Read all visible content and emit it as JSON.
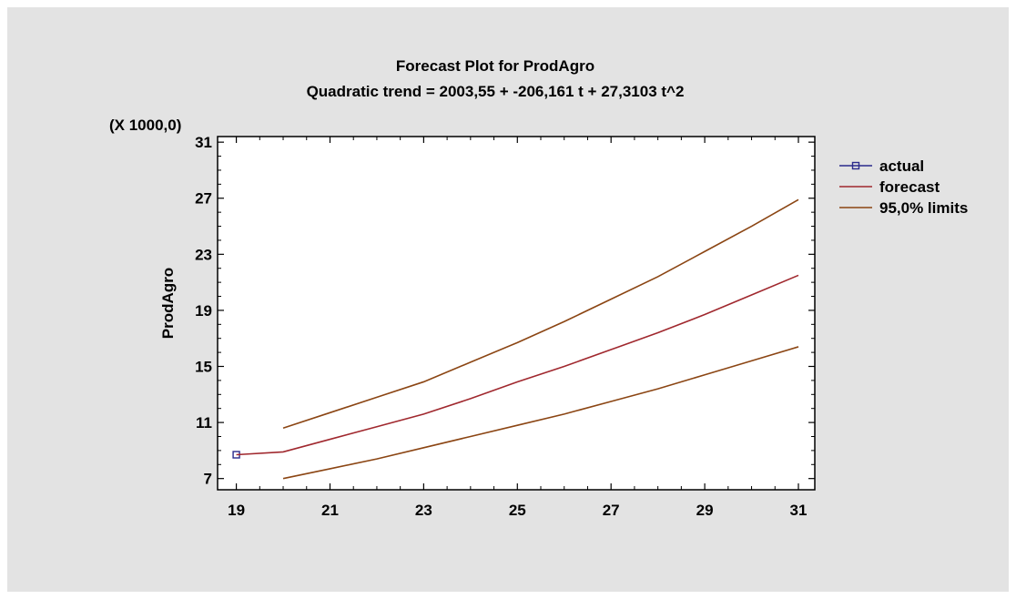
{
  "chart_data": {
    "type": "line",
    "title": "Forecast Plot for ProdAgro",
    "subtitle": "Quadratic trend = 2003,55 + -206,161 t  + 27,3103 t^2",
    "ylabel": "ProdAgro",
    "xlabel": "",
    "y_scale_note": "(X 1000,0)",
    "xlim": [
      18.6,
      31.35
    ],
    "ylim": [
      6.2,
      31.4
    ],
    "x_ticks": [
      19,
      21,
      23,
      25,
      27,
      29,
      31
    ],
    "x_tick_labels": [
      "19",
      "21",
      "23",
      "25",
      "27",
      "29",
      "31"
    ],
    "y_ticks": [
      7,
      11,
      15,
      19,
      23,
      27,
      31
    ],
    "y_tick_labels": [
      "7",
      "11",
      "15",
      "19",
      "23",
      "27",
      "31"
    ],
    "grid": false,
    "legend_position": "right",
    "series": [
      {
        "name": "actual",
        "color": "#2b2b8c",
        "marker": "square",
        "x": [
          19
        ],
        "y": [
          8.7
        ]
      },
      {
        "name": "forecast",
        "color": "#a0282e",
        "marker": "none",
        "x": [
          19,
          20,
          21,
          22,
          23,
          24,
          25,
          26,
          27,
          28,
          29,
          30,
          31
        ],
        "y": [
          8.7,
          8.9,
          9.8,
          10.7,
          11.6,
          12.7,
          13.9,
          15.0,
          16.2,
          17.4,
          18.7,
          20.1,
          21.5
        ]
      },
      {
        "name": "95,0% limits",
        "color": "#8b4513",
        "marker": "none",
        "x": [
          20,
          21,
          22,
          23,
          24,
          25,
          26,
          27,
          28,
          29,
          30,
          31
        ],
        "y": [
          10.6,
          11.7,
          12.8,
          13.9,
          15.3,
          16.7,
          18.2,
          19.8,
          21.4,
          23.2,
          25.0,
          26.9
        ]
      },
      {
        "name": "",
        "color": "#8b4513",
        "marker": "none",
        "x": [
          20,
          21,
          22,
          23,
          24,
          25,
          26,
          27,
          28,
          29,
          30,
          31
        ],
        "y": [
          7.0,
          7.7,
          8.4,
          9.2,
          10.0,
          10.8,
          11.6,
          12.5,
          13.4,
          14.4,
          15.4,
          16.4
        ]
      }
    ],
    "legend": [
      {
        "label": "actual",
        "color": "#2b2b8c",
        "marker": "square"
      },
      {
        "label": "forecast",
        "color": "#a0282e",
        "marker": "none"
      },
      {
        "label": "95,0% limits",
        "color": "#8b4513",
        "marker": "none"
      }
    ]
  }
}
